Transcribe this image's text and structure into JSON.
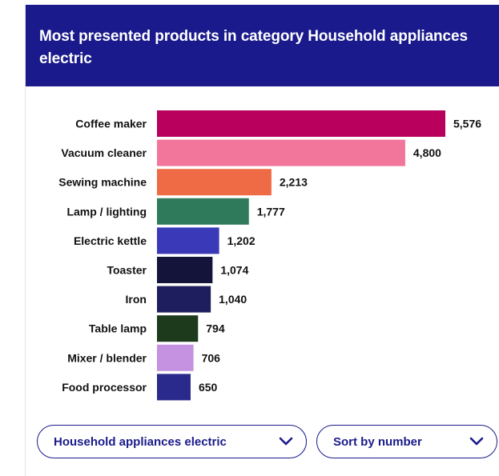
{
  "card": {
    "title": "Most presented products in category Household appliances electric"
  },
  "controls": {
    "category_value": "Household appliances electric",
    "category_icon": "chevron-down-icon",
    "sort_value": "Sort by number",
    "sort_icon": "chevron-down-icon"
  },
  "colors": {
    "header_bg": "#1a1a8c",
    "control_border": "#1a1a8c"
  },
  "chart_data": {
    "type": "bar",
    "orientation": "horizontal",
    "title": "Most presented products in category Household appliances electric",
    "xlabel": "",
    "ylabel": "",
    "grid": false,
    "categories": [
      "Coffee maker",
      "Vacuum cleaner",
      "Sewing machine",
      "Lamp / lighting",
      "Electric kettle",
      "Toaster",
      "Iron",
      "Table lamp",
      "Mixer / blender",
      "Food processor"
    ],
    "values": [
      5576,
      4800,
      2213,
      1777,
      1202,
      1074,
      1040,
      794,
      706,
      650
    ],
    "value_labels": [
      "5,576",
      "4,800",
      "2,213",
      "1,777",
      "1,202",
      "1,074",
      "1,040",
      "794",
      "706",
      "650"
    ],
    "colors": [
      "#b8005c",
      "#f2769b",
      "#ee6b45",
      "#2e7a5a",
      "#3a39b8",
      "#14143a",
      "#1e1e5e",
      "#1d3a1d",
      "#c492e0",
      "#2a2a8c"
    ],
    "xlim": [
      0,
      5576
    ]
  }
}
